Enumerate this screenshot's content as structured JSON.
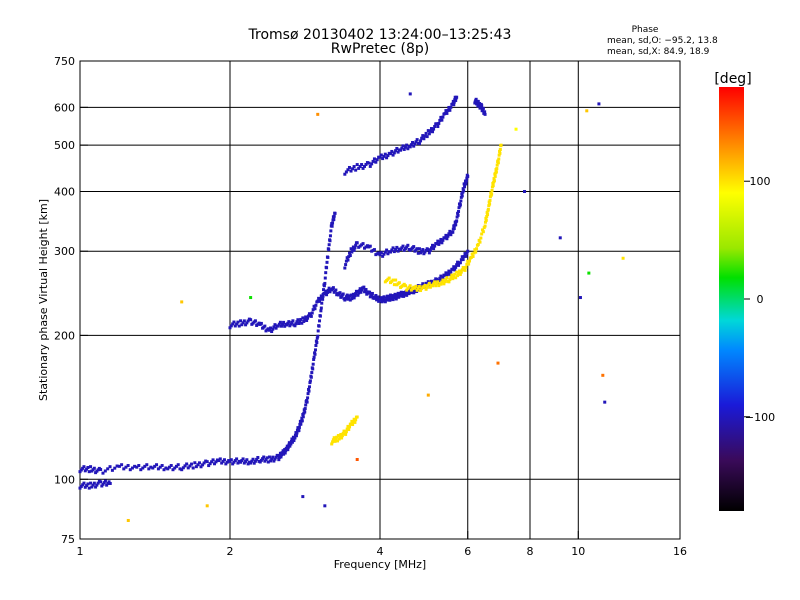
{
  "chart_data": {
    "type": "scatter",
    "title": "Tromsø 20130402 13:24:00–13:25:43",
    "subtitle": "RwPretec (8p)",
    "xlabel": "Frequency [MHz]",
    "ylabel": "Stationary phase Virtual Height [km]",
    "x_scale": "log",
    "y_scale": "log",
    "xlim": [
      1,
      16
    ],
    "ylim": [
      75,
      750
    ],
    "x_ticks": [
      1,
      2,
      4,
      6,
      8,
      10,
      16
    ],
    "y_ticks": [
      75,
      100,
      200,
      300,
      400,
      500,
      600,
      750
    ],
    "x_grid": [
      2,
      4,
      6,
      8,
      10
    ],
    "y_grid": [
      100,
      200,
      300,
      400,
      500,
      600
    ],
    "phase_box": {
      "title": "Phase",
      "line1": "mean, sd,O: −95.2, 13.8",
      "line2": "mean, sd,X:  84.9, 18.9"
    },
    "colorbar": {
      "label": "[deg]",
      "range": [
        -180,
        180
      ],
      "ticks": [
        100,
        0,
        -100
      ],
      "tick_labels": [
        "100",
        "0",
        "−100"
      ]
    },
    "traces": [
      {
        "kind": "O_blue",
        "phase": -100,
        "points": [
          [
            1,
            105
          ],
          [
            1.05,
            105
          ],
          [
            1.1,
            104
          ],
          [
            1.2,
            106
          ],
          [
            1.3,
            106
          ],
          [
            1.4,
            106
          ],
          [
            1.5,
            106
          ],
          [
            1.6,
            106
          ],
          [
            1.7,
            107
          ],
          [
            1.8,
            108
          ],
          [
            1.9,
            109
          ],
          [
            2.0,
            109
          ],
          [
            2.1,
            109
          ],
          [
            2.2,
            109
          ],
          [
            2.3,
            110
          ],
          [
            2.4,
            110
          ],
          [
            2.5,
            111
          ],
          [
            2.55,
            113
          ],
          [
            2.6,
            116
          ],
          [
            2.65,
            119
          ],
          [
            2.7,
            123
          ],
          [
            2.75,
            128
          ],
          [
            2.8,
            135
          ],
          [
            2.85,
            145
          ],
          [
            2.9,
            160
          ],
          [
            2.95,
            180
          ],
          [
            3.0,
            200
          ],
          [
            3.05,
            230
          ],
          [
            3.1,
            260
          ],
          [
            3.15,
            300
          ],
          [
            3.2,
            340
          ],
          [
            3.25,
            360
          ]
        ]
      },
      {
        "kind": "O_blue_low",
        "phase": -100,
        "points": [
          [
            1,
            97
          ],
          [
            1.05,
            97
          ],
          [
            1.1,
            98
          ],
          [
            1.15,
            98
          ]
        ]
      },
      {
        "kind": "O_blue_layer",
        "phase": -100,
        "points": [
          [
            2.0,
            210
          ],
          [
            2.1,
            212
          ],
          [
            2.2,
            214
          ],
          [
            2.3,
            210
          ],
          [
            2.4,
            205
          ],
          [
            2.5,
            210
          ],
          [
            2.6,
            212
          ],
          [
            2.7,
            212
          ],
          [
            2.8,
            215
          ],
          [
            2.9,
            220
          ],
          [
            3.0,
            235
          ],
          [
            3.1,
            245
          ],
          [
            3.2,
            250
          ],
          [
            3.3,
            245
          ],
          [
            3.4,
            240
          ],
          [
            3.5,
            240
          ],
          [
            3.6,
            245
          ],
          [
            3.7,
            250
          ],
          [
            3.8,
            245
          ],
          [
            3.9,
            240
          ],
          [
            4.0,
            238
          ],
          [
            4.1,
            238
          ],
          [
            4.2,
            240
          ],
          [
            4.3,
            241
          ],
          [
            4.4,
            243
          ],
          [
            4.5,
            245
          ],
          [
            4.6,
            247
          ],
          [
            4.7,
            249
          ],
          [
            4.8,
            252
          ],
          [
            5.0,
            256
          ],
          [
            5.2,
            260
          ],
          [
            5.4,
            266
          ],
          [
            5.6,
            275
          ],
          [
            5.8,
            285
          ],
          [
            6.0,
            300
          ]
        ]
      },
      {
        "kind": "O_blue_upper",
        "phase": -100,
        "points": [
          [
            3.4,
            280
          ],
          [
            3.5,
            300
          ],
          [
            3.6,
            310
          ],
          [
            3.8,
            305
          ],
          [
            4.0,
            295
          ],
          [
            4.2,
            300
          ],
          [
            4.4,
            305
          ],
          [
            4.6,
            305
          ],
          [
            4.8,
            300
          ],
          [
            5.0,
            300
          ],
          [
            5.2,
            310
          ],
          [
            5.4,
            320
          ],
          [
            5.6,
            330
          ],
          [
            5.7,
            350
          ],
          [
            5.8,
            380
          ],
          [
            5.9,
            410
          ],
          [
            6.0,
            430
          ]
        ]
      },
      {
        "kind": "O_blue_F2",
        "phase": -100,
        "points": [
          [
            3.4,
            440
          ],
          [
            3.6,
            450
          ],
          [
            3.8,
            455
          ],
          [
            4.0,
            470
          ],
          [
            4.2,
            480
          ],
          [
            4.4,
            490
          ],
          [
            4.6,
            500
          ],
          [
            4.8,
            510
          ],
          [
            5.0,
            530
          ],
          [
            5.2,
            550
          ],
          [
            5.4,
            580
          ],
          [
            5.6,
            610
          ],
          [
            5.7,
            630
          ]
        ]
      },
      {
        "kind": "O_blue_high",
        "phase": -100,
        "points": [
          [
            6.2,
            620
          ],
          [
            6.3,
            610
          ],
          [
            6.4,
            600
          ],
          [
            6.5,
            580
          ]
        ]
      },
      {
        "kind": "X_yellow",
        "phase": 100,
        "points": [
          [
            4.1,
            262
          ],
          [
            4.3,
            258
          ],
          [
            4.5,
            252
          ],
          [
            4.7,
            250
          ],
          [
            4.9,
            252
          ],
          [
            5.1,
            255
          ],
          [
            5.3,
            258
          ],
          [
            5.5,
            262
          ],
          [
            5.7,
            268
          ],
          [
            5.9,
            275
          ],
          [
            6.1,
            290
          ],
          [
            6.3,
            310
          ],
          [
            6.5,
            340
          ],
          [
            6.6,
            370
          ],
          [
            6.7,
            400
          ],
          [
            6.8,
            430
          ],
          [
            6.9,
            460
          ],
          [
            7.0,
            500
          ]
        ]
      },
      {
        "kind": "X_yellow_low",
        "phase": 100,
        "points": [
          [
            3.2,
            120
          ],
          [
            3.3,
            122
          ],
          [
            3.4,
            125
          ],
          [
            3.5,
            130
          ],
          [
            3.6,
            135
          ]
        ]
      }
    ],
    "scatter": [
      {
        "x": 1.25,
        "y": 82,
        "phase": 110
      },
      {
        "x": 1.6,
        "y": 235,
        "phase": 110
      },
      {
        "x": 1.8,
        "y": 88,
        "phase": 110
      },
      {
        "x": 2.2,
        "y": 240,
        "phase": 20
      },
      {
        "x": 2.8,
        "y": 92,
        "phase": -100
      },
      {
        "x": 3.1,
        "y": 88,
        "phase": -100
      },
      {
        "x": 3.0,
        "y": 580,
        "phase": 130
      },
      {
        "x": 3.6,
        "y": 110,
        "phase": 150
      },
      {
        "x": 4.6,
        "y": 640,
        "phase": -100
      },
      {
        "x": 5.0,
        "y": 150,
        "phase": 120
      },
      {
        "x": 6.9,
        "y": 175,
        "phase": 140
      },
      {
        "x": 7.5,
        "y": 540,
        "phase": 90
      },
      {
        "x": 7.8,
        "y": 400,
        "phase": -100
      },
      {
        "x": 9.2,
        "y": 320,
        "phase": -100
      },
      {
        "x": 10.1,
        "y": 240,
        "phase": -100
      },
      {
        "x": 10.4,
        "y": 590,
        "phase": 110
      },
      {
        "x": 10.5,
        "y": 270,
        "phase": 20
      },
      {
        "x": 11.0,
        "y": 610,
        "phase": -100
      },
      {
        "x": 11.2,
        "y": 165,
        "phase": 140
      },
      {
        "x": 11.3,
        "y": 145,
        "phase": -100
      },
      {
        "x": 12.3,
        "y": 290,
        "phase": 100
      }
    ]
  }
}
